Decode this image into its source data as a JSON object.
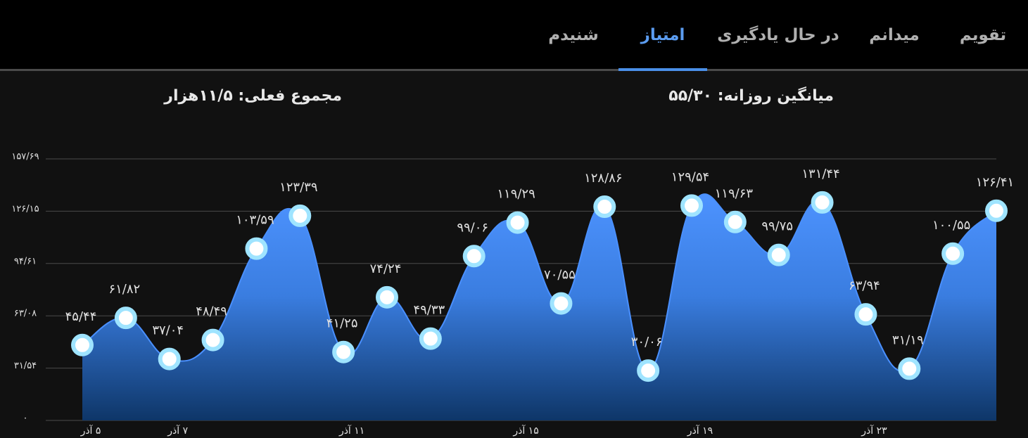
{
  "tabs": [
    "تقویم",
    "میدانم",
    "در حال یادگیری",
    "امتیاز",
    "شنیدم"
  ],
  "active_tab": 3,
  "summary": {
    "daily_average": "میانگین روزانه: ۵۵/۳۰",
    "current_total": "مجموع فعلی: ۱۱/۵هزار"
  },
  "chart_data": {
    "type": "area",
    "categories": [
      "۵ آذر",
      null,
      "۷ آذر",
      null,
      null,
      null,
      "۱۱ آذر",
      null,
      null,
      null,
      "۱۵ آذر",
      null,
      null,
      null,
      "۱۹ آذر",
      null,
      null,
      null,
      "۲۳ آذر",
      null,
      null,
      null
    ],
    "values": [
      45.44,
      61.82,
      37.04,
      48.49,
      103.59,
      123.39,
      41.25,
      74.24,
      49.33,
      99.06,
      119.29,
      70.55,
      128.86,
      30.06,
      129.54,
      119.63,
      99.75,
      131.44,
      63.94,
      31.19,
      100.55,
      126.41
    ],
    "value_labels": [
      "۴۵/۴۴",
      "۶۱/۸۲",
      "۳۷/۰۴",
      "۴۸/۴۹",
      "۱۰۳/۵۹",
      "۱۲۳/۳۹",
      "۴۱/۲۵",
      "۷۴/۲۴",
      "۴۹/۳۳",
      "۹۹/۰۶",
      "۱۱۹/۲۹",
      "۷۰/۵۵",
      "۱۲۸/۸۶",
      "۳۰/۰۶",
      "۱۲۹/۵۴",
      "۱۱۹/۶۳",
      "۹۹/۷۵",
      "۱۳۱/۴۴",
      "۶۳/۹۴",
      "۳۱/۱۹",
      "۱۰۰/۵۵",
      "۱۲۶/۴۱"
    ],
    "color": "#4a90ff",
    "ylim": [
      0,
      157.69
    ],
    "yticks": [
      {
        "value": 0,
        "label": "۰"
      },
      {
        "value": 31.54,
        "label": "۳۱/۵۴"
      },
      {
        "value": 63.08,
        "label": "۶۳/۰۸"
      },
      {
        "value": 94.61,
        "label": "۹۴/۶۱"
      },
      {
        "value": 126.15,
        "label": "۱۲۶/۱۵"
      },
      {
        "value": 157.69,
        "label": "۱۵۷/۶۹"
      }
    ],
    "grid": true
  }
}
